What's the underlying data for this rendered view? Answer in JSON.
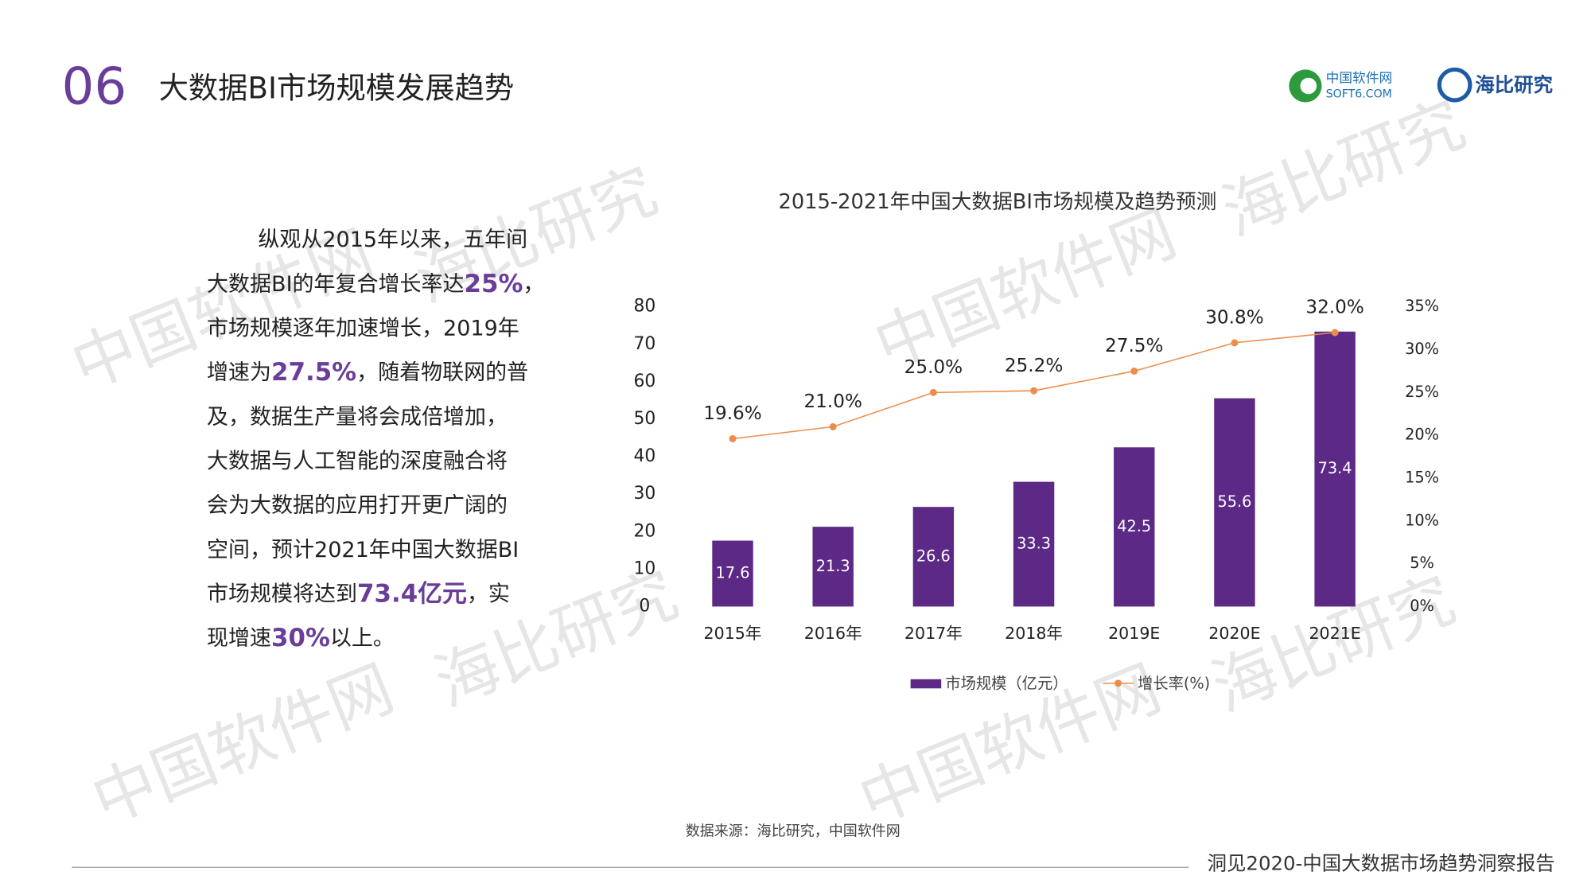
{
  "header": {
    "number": "06",
    "title": "大数据BI市场规模发展趋势"
  },
  "logos": {
    "soft6_name": "中国软件网",
    "soft6_url": "SOFT6.COM",
    "haibi": "海比研究"
  },
  "watermarks": [
    "中国软件网",
    "海比研究"
  ],
  "paragraph": [
    [
      {
        "text": "纵观从2015年以来，五年间"
      }
    ],
    [
      {
        "text": "大数据BI的年复合增长率达"
      },
      {
        "text": "25%",
        "emphasis": true
      },
      {
        "text": "，"
      }
    ],
    [
      {
        "text": "市场规模逐年加速增长，2019年"
      }
    ],
    [
      {
        "text": "增速为"
      },
      {
        "text": "27.5%",
        "emphasis": true
      },
      {
        "text": "，随着物联网的普"
      }
    ],
    [
      {
        "text": "及，数据生产量将会成倍增加，"
      }
    ],
    [
      {
        "text": "大数据与人工智能的深度融合将"
      }
    ],
    [
      {
        "text": "会为大数据的应用打开更广阔的"
      }
    ],
    [
      {
        "text": "空间，预计2021年中国大数据BI"
      }
    ],
    [
      {
        "text": "市场规模将达到"
      },
      {
        "text": "73.4亿元",
        "emphasis": true
      },
      {
        "text": "，实"
      }
    ],
    [
      {
        "text": "现增速"
      },
      {
        "text": "30%",
        "emphasis": true
      },
      {
        "text": "以上。"
      }
    ]
  ],
  "source": "数据来源：海比研究，中国软件网",
  "footer": "洞见2020-中国大数据市场趋势洞察报告",
  "chart_data": {
    "type": "bar",
    "title": "2015-2021年中国大数据BI市场规模及趋势预测",
    "categories": [
      "2015年",
      "2016年",
      "2017年",
      "2018年",
      "2019E",
      "2020E",
      "2021E"
    ],
    "series": [
      {
        "name": "市场规模（亿元）",
        "type": "bar",
        "color": "#5c2a86",
        "values": [
          17.6,
          21.3,
          26.6,
          33.3,
          42.5,
          55.6,
          73.4
        ]
      },
      {
        "name": "增长率(%)",
        "type": "line",
        "axis": "y2",
        "color": "#ee8d4a",
        "values": [
          19.6,
          21.0,
          25.0,
          25.2,
          27.5,
          30.8,
          32.0
        ],
        "value_labels": [
          "19.6%",
          "21.0%",
          "25.0%",
          "25.2%",
          "27.5%",
          "30.8%",
          "32.0%"
        ]
      }
    ],
    "ylim": [
      0,
      80
    ],
    "yticks": [
      0,
      10,
      20,
      30,
      40,
      50,
      60,
      70,
      80
    ],
    "y2lim": [
      0,
      35
    ],
    "y2ticks": [
      {
        "value": 0,
        "label": "0%"
      },
      {
        "value": 5,
        "label": "5%"
      },
      {
        "value": 10,
        "label": "10%"
      },
      {
        "value": 15,
        "label": "15%"
      },
      {
        "value": 20,
        "label": "20%"
      },
      {
        "value": 25,
        "label": "25%"
      },
      {
        "value": 30,
        "label": "30%"
      },
      {
        "value": 35,
        "label": "35%"
      }
    ],
    "grid": false,
    "legend": "bottom"
  }
}
